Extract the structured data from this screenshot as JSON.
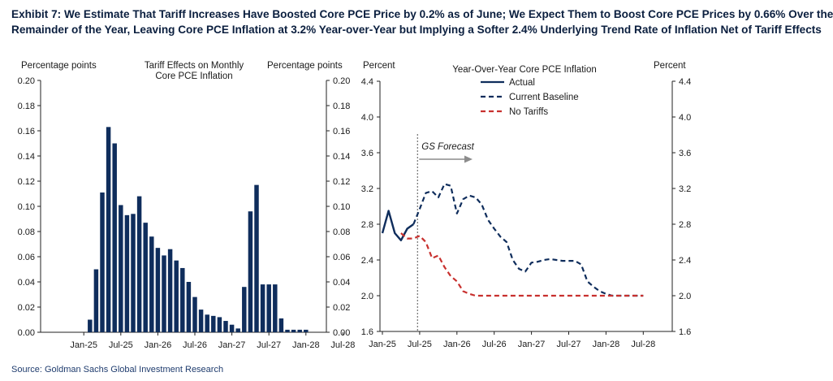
{
  "title_line1": "Exhibit 7: We Estimate That Tariff Increases Have Boosted Core PCE Price by 0.2% as of June; We Expect Them to Boost Core PCE Prices by 0.66% Over the",
  "title_line2": "Remainder of the Year, Leaving Core PCE Inflation at 3.2% Year-over-Year but Implying a Softer 2.4% Underlying Trend Rate of Inflation Net of Tariff Effects",
  "source": "Source: Goldman Sachs Global Investment Research",
  "colors": {
    "navy": "#0f2d5c",
    "red": "#c8302e",
    "grey": "#8c8c8c"
  },
  "chart_data": [
    {
      "type": "bar",
      "title": "Tariff Effects on Monthly Core PCE Inflation",
      "title_lines": [
        "Tariff Effects on Monthly",
        "Core PCE Inflation"
      ],
      "ylabel_left": "Percentage  points",
      "ylabel_right": "Percentage  points",
      "ylim": [
        0,
        0.2
      ],
      "yticks": [
        "0.00",
        "0.02",
        "0.04",
        "0.06",
        "0.08",
        "0.10",
        "0.12",
        "0.14",
        "0.16",
        "0.18",
        "0.20"
      ],
      "xticks": [
        "Jan-25",
        "Jul-25",
        "Jan-26",
        "Jul-26",
        "Jan-27",
        "Jul-27",
        "Jan-28",
        "Jul-28"
      ],
      "categories": [
        "Feb-25",
        "Mar-25",
        "Apr-25",
        "May-25",
        "Jun-25",
        "Jul-25",
        "Aug-25",
        "Sep-25",
        "Oct-25",
        "Nov-25",
        "Dec-25",
        "Jan-26",
        "Feb-26",
        "Mar-26",
        "Apr-26",
        "May-26",
        "Jun-26",
        "Jul-26",
        "Aug-26",
        "Sep-26",
        "Oct-26",
        "Nov-26",
        "Dec-26",
        "Jan-27",
        "Feb-27",
        "Mar-27",
        "Apr-27",
        "May-27",
        "Jun-27",
        "Jul-27",
        "Aug-27",
        "Sep-27",
        "Oct-27",
        "Nov-27",
        "Dec-27",
        "Jan-28"
      ],
      "values": [
        0.01,
        0.05,
        0.111,
        0.163,
        0.15,
        0.101,
        0.093,
        0.094,
        0.108,
        0.087,
        0.076,
        0.067,
        0.061,
        0.066,
        0.057,
        0.051,
        0.04,
        0.028,
        0.018,
        0.014,
        0.013,
        0.012,
        0.009,
        0.006,
        0.003,
        0.036,
        0.096,
        0.117,
        0.038,
        0.038,
        0.038,
        0.011,
        0.002,
        0.002,
        0.002,
        0.002
      ]
    },
    {
      "type": "line",
      "title": "Year-Over-Year  Core PCE Inflation",
      "ylabel_left": "Percent",
      "ylabel_right": "Percent",
      "ylim": [
        1.6,
        4.4
      ],
      "yticks": [
        "1.6",
        "2.0",
        "2.4",
        "2.8",
        "3.2",
        "3.6",
        "4.0",
        "4.4"
      ],
      "xticks": [
        "Jan-25",
        "Jul-25",
        "Jan-26",
        "Jul-26",
        "Jan-27",
        "Jul-27",
        "Jan-28",
        "Jul-28"
      ],
      "annotation": "GS Forecast",
      "forecast_start_index": 5,
      "series": [
        {
          "name": "Actual",
          "style": "solid",
          "color": "#0f2d5c",
          "start_index": 0,
          "values": [
            2.7,
            2.95,
            2.7,
            2.62,
            2.75,
            2.8
          ]
        },
        {
          "name": "Current Baseline",
          "style": "dashed",
          "color": "#0f2d5c",
          "start_index": 5,
          "values": [
            2.8,
            2.97,
            3.15,
            3.17,
            3.1,
            3.25,
            3.23,
            2.92,
            3.08,
            3.12,
            3.1,
            3.02,
            2.85,
            2.75,
            2.66,
            2.6,
            2.4,
            2.3,
            2.27,
            2.37,
            2.38,
            2.4,
            2.41,
            2.4,
            2.39,
            2.39,
            2.39,
            2.35,
            2.16,
            2.1,
            2.05,
            2.02,
            2.0,
            2.0,
            2.0,
            2.0,
            2.0,
            2.0
          ]
        },
        {
          "name": "No Tariffs",
          "style": "dashed",
          "color": "#c8302e",
          "start_index": 3,
          "values": [
            2.7,
            2.64,
            2.64,
            2.67,
            2.6,
            2.42,
            2.45,
            2.32,
            2.22,
            2.16,
            2.05,
            2.02,
            2.0,
            2.0,
            2.0,
            2.0,
            2.0,
            2.0,
            2.0,
            2.0,
            2.0,
            2.0,
            2.0,
            2.0,
            2.0,
            2.0,
            2.0,
            2.0,
            2.0,
            2.0,
            2.0,
            2.0,
            2.0,
            2.0,
            2.0,
            2.0,
            2.0,
            2.0,
            2.0,
            2.0
          ]
        }
      ]
    }
  ]
}
